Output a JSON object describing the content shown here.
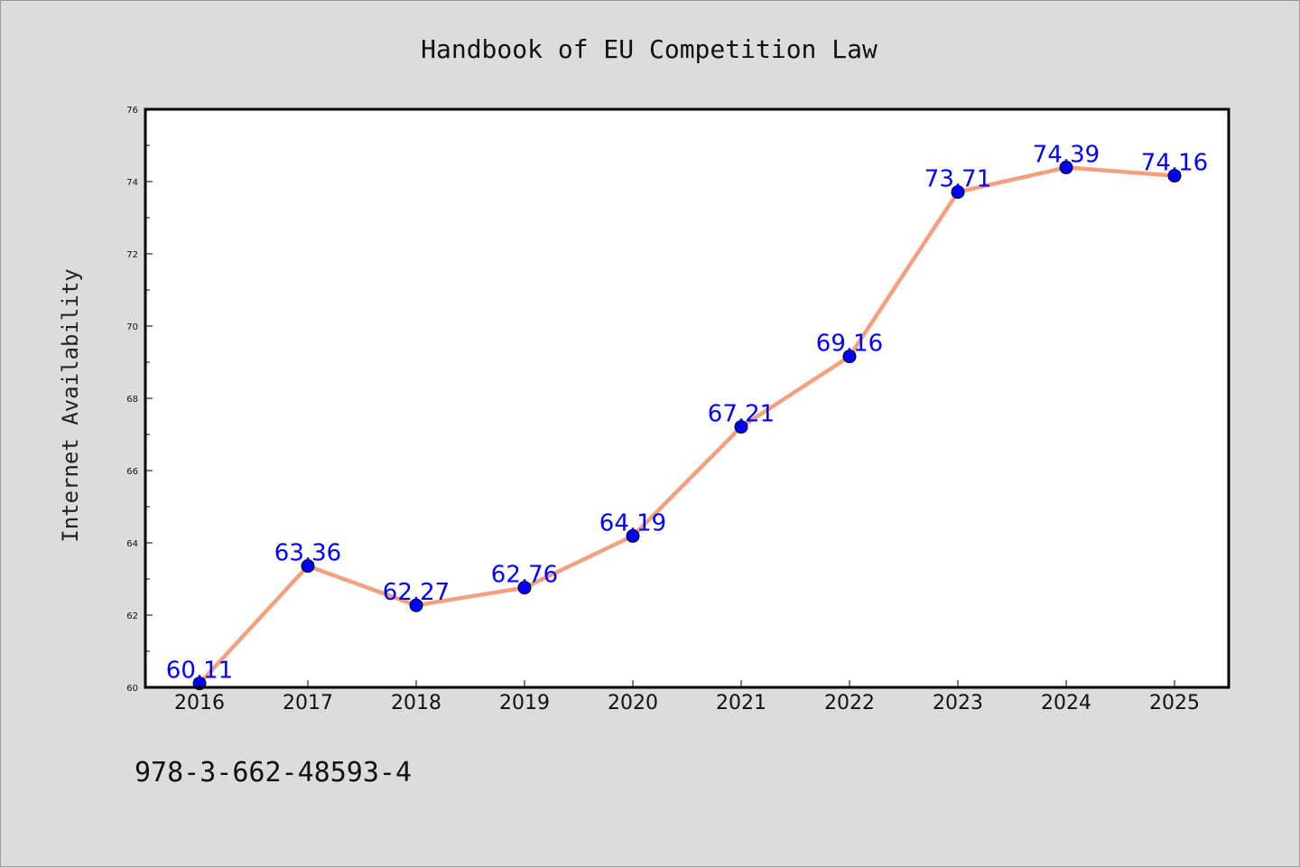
{
  "chart_data": {
    "type": "line",
    "title": "Handbook of EU Competition Law",
    "xlabel": "",
    "ylabel": "Internet Availability",
    "categories": [
      "2016",
      "2017",
      "2018",
      "2019",
      "2020",
      "2021",
      "2022",
      "2023",
      "2024",
      "2025"
    ],
    "values": [
      60.11,
      63.36,
      62.27,
      62.76,
      64.19,
      67.21,
      69.16,
      73.71,
      74.39,
      74.16
    ],
    "data_labels": [
      "60.11",
      "63.36",
      "62.27",
      "62.76",
      "64.19",
      "67.21",
      "69.16",
      "73.71",
      "74.39",
      "74.16"
    ],
    "ylim": [
      60,
      76
    ],
    "yticks": [
      "60",
      "62",
      "64",
      "66",
      "68",
      "70",
      "72",
      "74",
      "76"
    ],
    "grid": false,
    "legend": "none",
    "colors": {
      "line": "#f4a07e",
      "marker": "#0000ff",
      "label": "#0000ff",
      "background": "#dcdcdc",
      "plot_background": "#ffffff"
    }
  },
  "footer": {
    "isbn": "978-3-662-48593-4"
  }
}
